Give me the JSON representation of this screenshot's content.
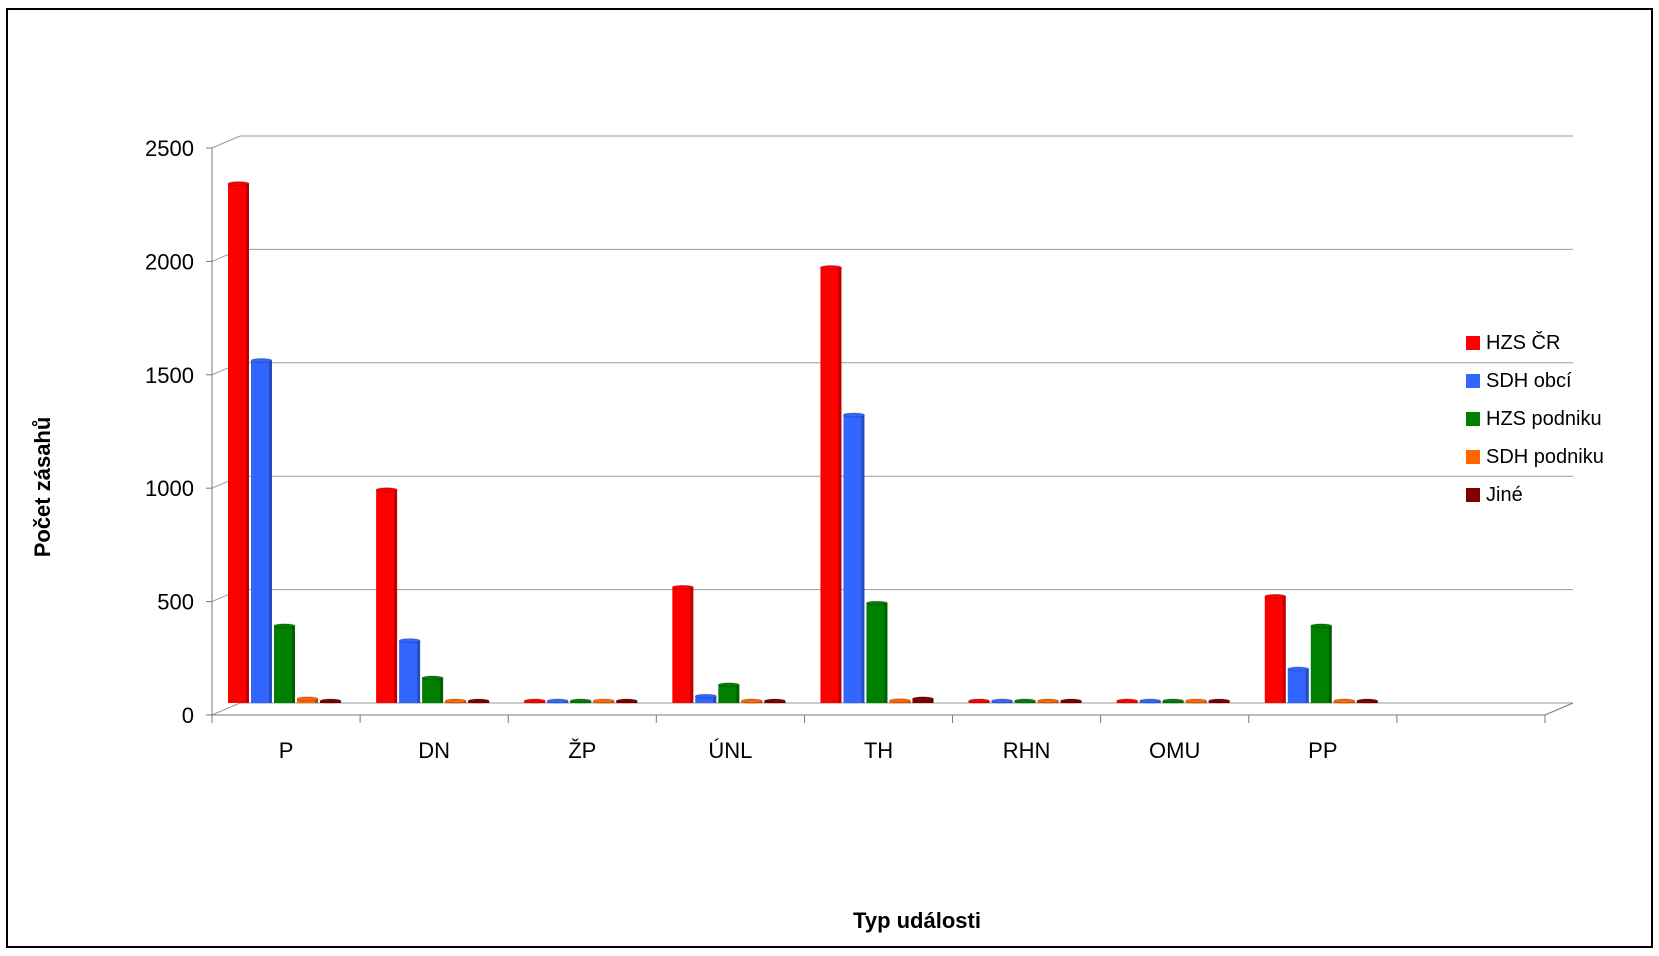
{
  "chart_data": {
    "type": "bar",
    "title": "",
    "xlabel": "Typ události",
    "ylabel": "Počet zásahů",
    "ylim": [
      0,
      2500
    ],
    "yticks": [
      0,
      500,
      1000,
      1500,
      2000,
      2500
    ],
    "grid": true,
    "legend_position": "right",
    "categories": [
      "P",
      "DN",
      "ŽP",
      "ÚNL",
      "TH",
      "RHN",
      "OMU",
      "PP"
    ],
    "series": [
      {
        "name": "HZS ČR",
        "color": "#ff0000",
        "values": [
          2290,
          940,
          8,
          510,
          1920,
          8,
          8,
          470
        ]
      },
      {
        "name": "SDH obcí",
        "color": "#3366ff",
        "values": [
          1510,
          275,
          8,
          30,
          1270,
          8,
          8,
          150
        ]
      },
      {
        "name": "HZS podniku",
        "color": "#008000",
        "values": [
          340,
          110,
          8,
          80,
          440,
          8,
          8,
          340
        ]
      },
      {
        "name": "SDH podniku",
        "color": "#ff6600",
        "values": [
          18,
          8,
          8,
          8,
          10,
          8,
          8,
          8
        ]
      },
      {
        "name": "Jiné",
        "color": "#800000",
        "values": [
          8,
          8,
          8,
          8,
          18,
          8,
          8,
          8
        ]
      }
    ]
  }
}
